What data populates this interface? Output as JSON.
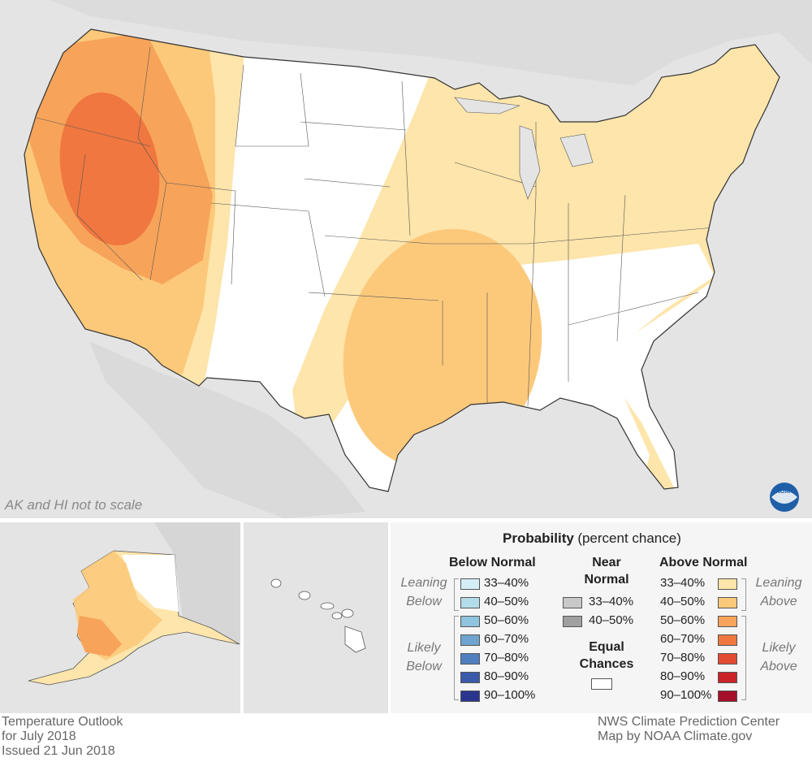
{
  "map_note": "AK and HI not to scale",
  "legend": {
    "title": "Probability",
    "subtitle": "(percent chance)",
    "below_header": "Below Normal",
    "near_header_line1": "Near",
    "near_header_line2": "Normal",
    "above_header": "Above Normal",
    "leaning_below": [
      "Leaning",
      "Below"
    ],
    "likely_below": [
      "Likely",
      "Below"
    ],
    "leaning_above": [
      "Leaning",
      "Above"
    ],
    "likely_above": [
      "Likely",
      "Above"
    ],
    "equal_chances": [
      "Equal",
      "Chances"
    ],
    "below_items": [
      {
        "label": "33–40%",
        "color": "#d4eef7"
      },
      {
        "label": "40–50%",
        "color": "#b3dcea"
      },
      {
        "label": "50–60%",
        "color": "#8fc3de"
      },
      {
        "label": "60–70%",
        "color": "#6ea4cf"
      },
      {
        "label": "70–80%",
        "color": "#4f7fbf"
      },
      {
        "label": "80–90%",
        "color": "#3c5aaa"
      },
      {
        "label": "90–100%",
        "color": "#2a3590"
      }
    ],
    "near_items": [
      {
        "label": "33–40%",
        "color": "#c8c8c8"
      },
      {
        "label": "40–50%",
        "color": "#a0a0a0"
      }
    ],
    "above_items": [
      {
        "label": "33–40%",
        "color": "#fde5ab"
      },
      {
        "label": "40–50%",
        "color": "#fcc97b"
      },
      {
        "label": "50–60%",
        "color": "#f7a45a"
      },
      {
        "label": "60–70%",
        "color": "#f0773f"
      },
      {
        "label": "70–80%",
        "color": "#e34a32"
      },
      {
        "label": "80–90%",
        "color": "#cc2229"
      },
      {
        "label": "90–100%",
        "color": "#a50f2a"
      }
    ],
    "equal_color": "#ffffff"
  },
  "footer_left": [
    "Temperature Outlook",
    "for July 2018",
    "Issued 21 Jun 2018"
  ],
  "footer_right": [
    "NWS Climate Prediction Center",
    "Map by NOAA Climate.gov"
  ],
  "logo_text": "NOAA",
  "colors": {
    "background": "#e4e4e4",
    "leaning_above_33_40": "#fde5ab",
    "above_40_50": "#fcc97b",
    "above_50_60": "#f7a45a",
    "above_60_70": "#f0773f",
    "equal_chances": "#ffffff"
  }
}
